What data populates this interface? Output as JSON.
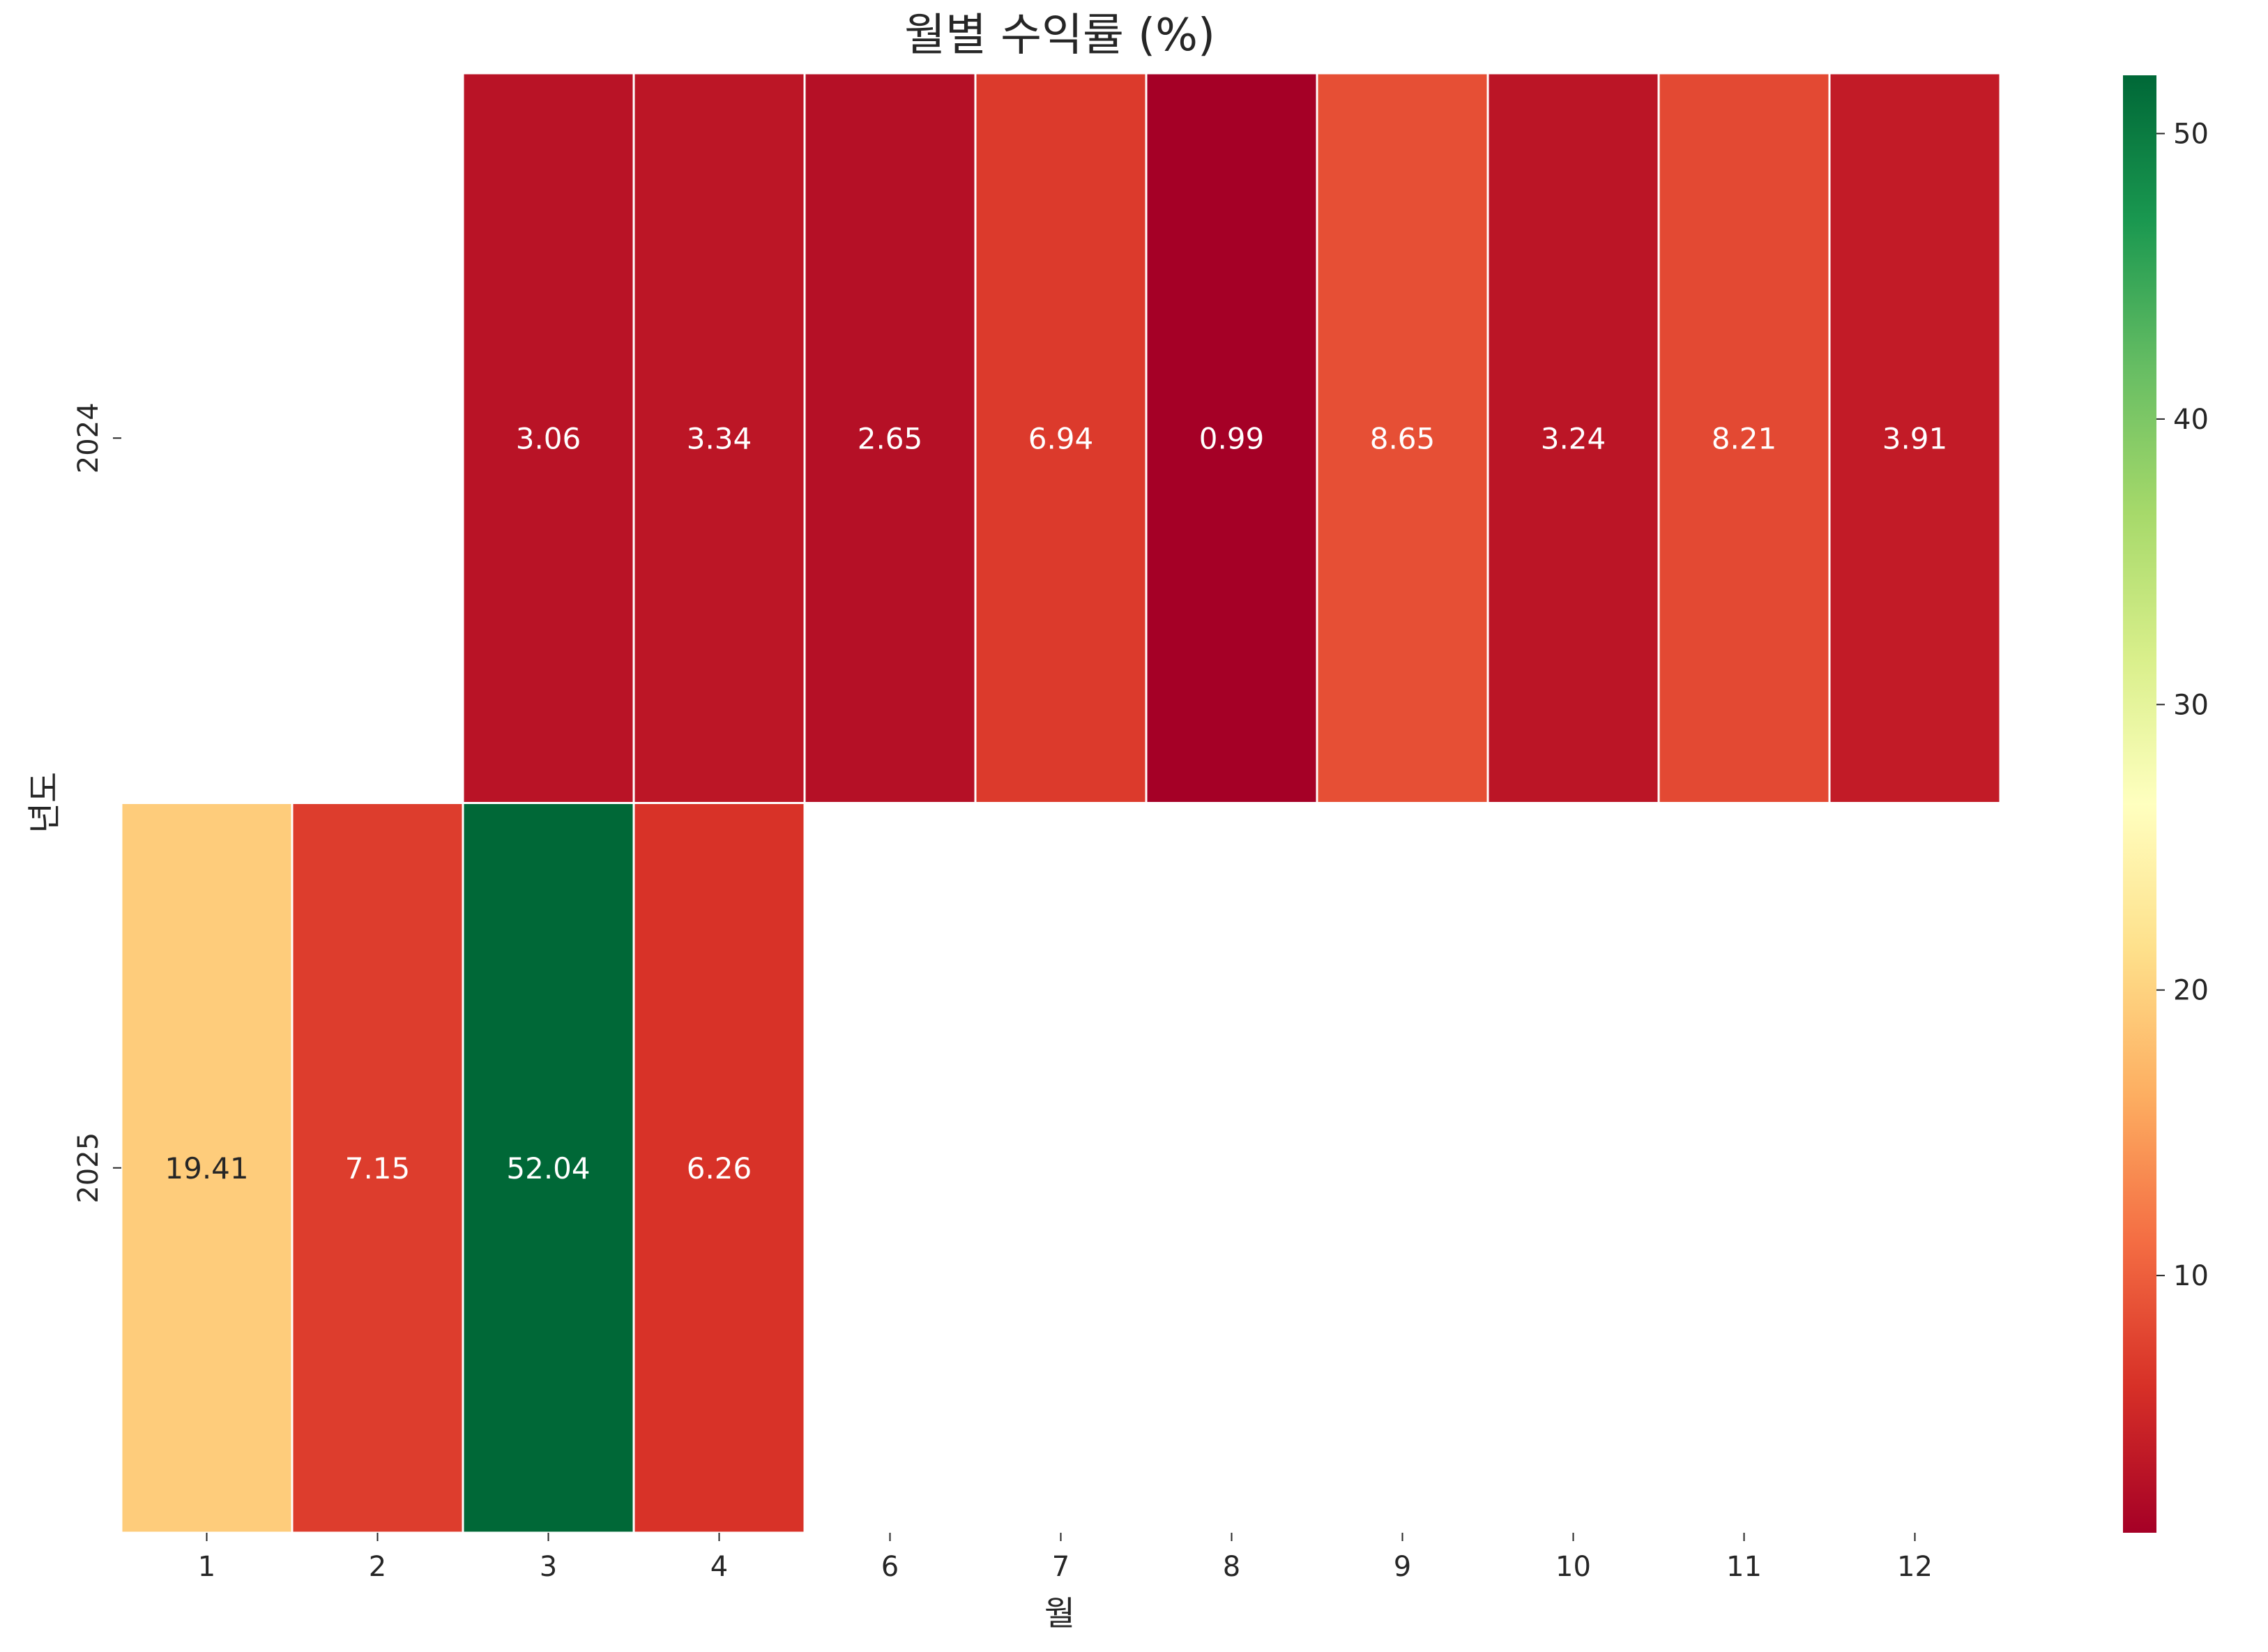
{
  "chart_data": {
    "type": "heatmap",
    "title": "월별 수익률 (%)",
    "xlabel": "월",
    "ylabel": "년도",
    "x_categories": [
      "1",
      "2",
      "3",
      "4",
      "6",
      "7",
      "8",
      "9",
      "10",
      "11",
      "12"
    ],
    "y_categories": [
      "2024",
      "2025"
    ],
    "cells": [
      {
        "year": "2024",
        "month": "3",
        "value": 3.06,
        "label": "3.06"
      },
      {
        "year": "2024",
        "month": "4",
        "value": 3.34,
        "label": "3.34"
      },
      {
        "year": "2024",
        "month": "6",
        "value": 2.65,
        "label": "2.65"
      },
      {
        "year": "2024",
        "month": "7",
        "value": 6.94,
        "label": "6.94"
      },
      {
        "year": "2024",
        "month": "8",
        "value": 0.99,
        "label": "0.99"
      },
      {
        "year": "2024",
        "month": "9",
        "value": 8.65,
        "label": "8.65"
      },
      {
        "year": "2024",
        "month": "10",
        "value": 3.24,
        "label": "3.24"
      },
      {
        "year": "2024",
        "month": "11",
        "value": 8.21,
        "label": "8.21"
      },
      {
        "year": "2024",
        "month": "12",
        "value": 3.91,
        "label": "3.91"
      },
      {
        "year": "2025",
        "month": "1",
        "value": 19.41,
        "label": "19.41"
      },
      {
        "year": "2025",
        "month": "2",
        "value": 7.15,
        "label": "7.15"
      },
      {
        "year": "2025",
        "month": "3",
        "value": 52.04,
        "label": "52.04"
      },
      {
        "year": "2025",
        "month": "4",
        "value": 6.26,
        "label": "6.26"
      }
    ],
    "colorbar": {
      "colormap": "RdYlGn",
      "vmin": 0.99,
      "vmax": 52.04,
      "ticks": [
        "10",
        "20",
        "30",
        "40",
        "50"
      ]
    },
    "grid": false,
    "colors": {
      "cell_border": "#ffffff",
      "low": "#a50026",
      "mid": "#ffffbf",
      "high": "#006837",
      "text_dark": "#262626",
      "text_light": "#ffffff"
    }
  }
}
